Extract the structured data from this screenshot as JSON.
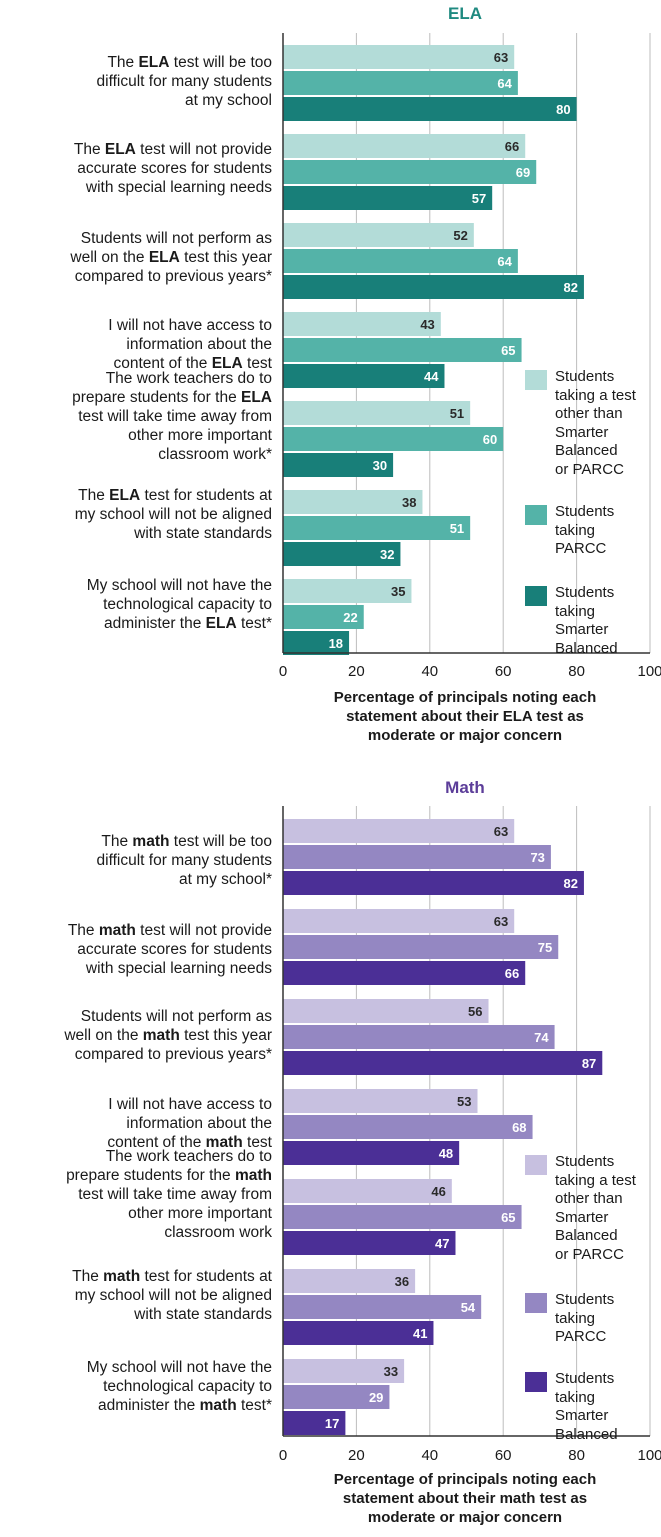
{
  "chart_data": [
    {
      "type": "bar",
      "orientation": "horizontal",
      "title": "ELA",
      "categories": [
        [
          "The ",
          {
            "b": "ELA"
          },
          " test will be too",
          "\n",
          "difficult for many students",
          "\n",
          "at my school"
        ],
        [
          "The ",
          {
            "b": "ELA"
          },
          " test will not provide",
          "\n",
          "accurate scores for students",
          "\n",
          "with special learning needs"
        ],
        [
          "Students will not perform as",
          "\n",
          "well on the ",
          {
            "b": "ELA"
          },
          " test this year",
          "\n",
          "compared to previous years*"
        ],
        [
          "I will not have access to",
          "\n",
          "information about the",
          "\n",
          "content of the ",
          {
            "b": "ELA"
          },
          " test"
        ],
        [
          "The work teachers do to",
          "\n",
          "prepare students for the ",
          {
            "b": "ELA"
          },
          "\n",
          "test will take time away from",
          "\n",
          "other more important",
          "\n",
          "classroom work*"
        ],
        [
          "The ",
          {
            "b": "ELA"
          },
          " test for students at",
          "\n",
          "my school will not be aligned",
          "\n",
          "with state standards"
        ],
        [
          "My school will not have the",
          "\n",
          "technological capacity to",
          "\n",
          "administer the ",
          {
            "b": "ELA"
          },
          " test*"
        ]
      ],
      "series": [
        {
          "name": "Students taking a test other than Smarter Balanced or PARCC",
          "color": "#b3dcd8",
          "label_color": "#2a2a2a",
          "values": [
            63,
            66,
            52,
            43,
            51,
            38,
            35
          ]
        },
        {
          "name": "Students taking PARCC",
          "color": "#54b3a8",
          "label_color": "#ffffff",
          "values": [
            64,
            69,
            64,
            65,
            60,
            51,
            22
          ]
        },
        {
          "name": "Students taking Smarter Balanced",
          "color": "#187f79",
          "label_color": "#ffffff",
          "values": [
            80,
            57,
            82,
            44,
            30,
            32,
            18
          ]
        }
      ],
      "legend_lines": [
        [
          "Students",
          "taking a test",
          "other than",
          "Smarter",
          "Balanced",
          "or PARCC"
        ],
        [
          "Students",
          "taking",
          "PARCC"
        ],
        [
          "Students",
          "taking",
          "Smarter",
          "Balanced"
        ]
      ],
      "xlim": [
        0,
        100
      ],
      "xticks": [
        0,
        20,
        40,
        60,
        80,
        100
      ],
      "xlabel_lines": [
        "Percentage of principals noting each",
        "statement about their ELA test as",
        "moderate or major concern"
      ],
      "grid": true,
      "legend_position": "right",
      "title_color": "#1f8a80"
    },
    {
      "type": "bar",
      "orientation": "horizontal",
      "title": "Math",
      "categories": [
        [
          "The ",
          {
            "b": "math"
          },
          " test will be too",
          "\n",
          "difficult for many students",
          "\n",
          "at my school*"
        ],
        [
          "The ",
          {
            "b": "math"
          },
          " test will not provide",
          "\n",
          "accurate scores for students",
          "\n",
          "with special learning needs"
        ],
        [
          "Students will not perform as",
          "\n",
          "well on the ",
          {
            "b": "math"
          },
          " test this year",
          "\n",
          "compared to previous years*"
        ],
        [
          "I will not have access to",
          "\n",
          "information about the",
          "\n",
          "content of the ",
          {
            "b": "math"
          },
          " test"
        ],
        [
          "The work teachers do to",
          "\n",
          "prepare students for the ",
          {
            "b": "math"
          },
          "\n",
          "test will take time away from",
          "\n",
          "other more important",
          "\n",
          "classroom work"
        ],
        [
          "The ",
          {
            "b": "math"
          },
          " test for students at",
          "\n",
          "my school will not be aligned",
          "\n",
          "with state standards"
        ],
        [
          "My school will not have the",
          "\n",
          "technological capacity to",
          "\n",
          "administer the ",
          {
            "b": "math"
          },
          " test*"
        ]
      ],
      "series": [
        {
          "name": "Students taking a test other than Smarter Balanced or PARCC",
          "color": "#c7c0e0",
          "label_color": "#2a2a2a",
          "values": [
            63,
            63,
            56,
            53,
            46,
            36,
            33
          ]
        },
        {
          "name": "Students taking PARCC",
          "color": "#9487c2",
          "label_color": "#ffffff",
          "values": [
            73,
            75,
            74,
            68,
            65,
            54,
            29
          ]
        },
        {
          "name": "Students taking Smarter Balanced",
          "color": "#4b2f96",
          "label_color": "#ffffff",
          "values": [
            82,
            66,
            87,
            48,
            47,
            41,
            17
          ]
        }
      ],
      "legend_lines": [
        [
          "Students",
          "taking a test",
          "other than",
          "Smarter",
          "Balanced",
          "or PARCC"
        ],
        [
          "Students",
          "taking",
          "PARCC"
        ],
        [
          "Students",
          "taking",
          "Smarter",
          "Balanced"
        ]
      ],
      "xlim": [
        0,
        100
      ],
      "xticks": [
        0,
        20,
        40,
        60,
        80,
        100
      ],
      "xlabel_lines": [
        "Percentage of principals noting each",
        "statement about their math test as",
        "moderate or major concern"
      ],
      "grid": true,
      "legend_position": "right",
      "title_color": "#5c3d99"
    }
  ]
}
